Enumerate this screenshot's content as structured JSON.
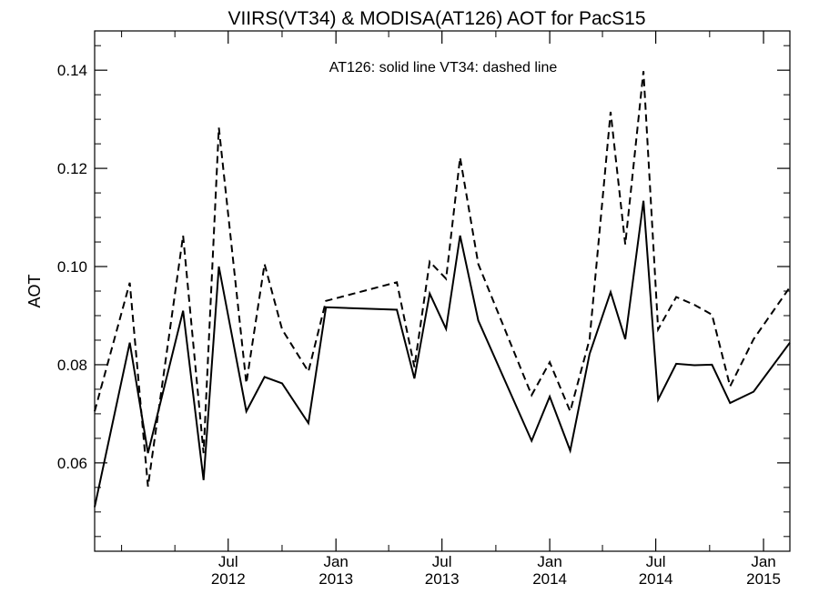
{
  "chart_data": {
    "type": "line",
    "title": "VIIRS(VT34) & MODISA(AT126)  AOT for PacS15",
    "annotation": "AT126: solid line   VT34: dashed line",
    "ylabel": "AOT",
    "xlabel": "",
    "xlim": [
      "2011-11-16",
      "2015-02-15"
    ],
    "ylim": [
      0.042,
      0.148
    ],
    "y_ticks": [
      0.06,
      0.08,
      0.1,
      0.12,
      0.14
    ],
    "y_tick_labels": [
      "0.06",
      "0.08",
      "0.10",
      "0.12",
      "0.14"
    ],
    "x_ticks": [
      {
        "date": "2012-07-01",
        "label": "Jul",
        "year": "2012"
      },
      {
        "date": "2013-01-01",
        "label": "Jan",
        "year": "2013"
      },
      {
        "date": "2013-07-01",
        "label": "Jul",
        "year": "2013"
      },
      {
        "date": "2014-01-01",
        "label": "Jan",
        "year": "2014"
      },
      {
        "date": "2014-07-01",
        "label": "Jul",
        "year": "2014"
      },
      {
        "date": "2015-01-01",
        "label": "Jan",
        "year": "2015"
      }
    ],
    "series": [
      {
        "name": "AT126",
        "style": "solid",
        "color": "#000000",
        "points": [
          {
            "x": "2011-11-16",
            "y": 0.051
          },
          {
            "x": "2012-01-15",
            "y": 0.0845
          },
          {
            "x": "2012-02-15",
            "y": 0.062
          },
          {
            "x": "2012-04-15",
            "y": 0.091
          },
          {
            "x": "2012-05-20",
            "y": 0.0565
          },
          {
            "x": "2012-06-15",
            "y": 0.1
          },
          {
            "x": "2012-08-01",
            "y": 0.0705
          },
          {
            "x": "2012-09-01",
            "y": 0.0775
          },
          {
            "x": "2012-10-01",
            "y": 0.0762
          },
          {
            "x": "2012-11-15",
            "y": 0.0681
          },
          {
            "x": "2012-12-15",
            "y": 0.0917
          },
          {
            "x": "2013-04-15",
            "y": 0.0912
          },
          {
            "x": "2013-05-15",
            "y": 0.0772
          },
          {
            "x": "2013-06-10",
            "y": 0.0945
          },
          {
            "x": "2013-07-08",
            "y": 0.0873
          },
          {
            "x": "2013-08-01",
            "y": 0.1063
          },
          {
            "x": "2013-09-01",
            "y": 0.089
          },
          {
            "x": "2013-12-01",
            "y": 0.0645
          },
          {
            "x": "2014-01-01",
            "y": 0.0735
          },
          {
            "x": "2014-02-05",
            "y": 0.0625
          },
          {
            "x": "2014-03-10",
            "y": 0.0822
          },
          {
            "x": "2014-04-15",
            "y": 0.0948
          },
          {
            "x": "2014-05-10",
            "y": 0.0852
          },
          {
            "x": "2014-06-10",
            "y": 0.1134
          },
          {
            "x": "2014-07-05",
            "y": 0.0729
          },
          {
            "x": "2014-08-05",
            "y": 0.0802
          },
          {
            "x": "2014-09-05",
            "y": 0.0799
          },
          {
            "x": "2014-10-05",
            "y": 0.08
          },
          {
            "x": "2014-11-05",
            "y": 0.0722
          },
          {
            "x": "2014-12-15",
            "y": 0.0745
          },
          {
            "x": "2015-02-15",
            "y": 0.0845
          }
        ]
      },
      {
        "name": "VT34",
        "style": "dashed",
        "color": "#000000",
        "points": [
          {
            "x": "2011-11-16",
            "y": 0.0705
          },
          {
            "x": "2012-01-15",
            "y": 0.0967
          },
          {
            "x": "2012-02-15",
            "y": 0.0552
          },
          {
            "x": "2012-04-15",
            "y": 0.1063
          },
          {
            "x": "2012-05-20",
            "y": 0.062
          },
          {
            "x": "2012-06-15",
            "y": 0.1283
          },
          {
            "x": "2012-08-01",
            "y": 0.0762
          },
          {
            "x": "2012-09-01",
            "y": 0.1005
          },
          {
            "x": "2012-10-01",
            "y": 0.0872
          },
          {
            "x": "2012-11-15",
            "y": 0.0786
          },
          {
            "x": "2012-12-15",
            "y": 0.093
          },
          {
            "x": "2013-04-15",
            "y": 0.0968
          },
          {
            "x": "2013-05-15",
            "y": 0.0795
          },
          {
            "x": "2013-06-10",
            "y": 0.101
          },
          {
            "x": "2013-07-08",
            "y": 0.0975
          },
          {
            "x": "2013-08-01",
            "y": 0.1222
          },
          {
            "x": "2013-09-01",
            "y": 0.1005
          },
          {
            "x": "2013-12-01",
            "y": 0.0738
          },
          {
            "x": "2014-01-01",
            "y": 0.0805
          },
          {
            "x": "2014-02-05",
            "y": 0.0705
          },
          {
            "x": "2014-03-10",
            "y": 0.0852
          },
          {
            "x": "2014-04-15",
            "y": 0.1315
          },
          {
            "x": "2014-05-10",
            "y": 0.1045
          },
          {
            "x": "2014-06-10",
            "y": 0.1398
          },
          {
            "x": "2014-07-05",
            "y": 0.0872
          },
          {
            "x": "2014-08-05",
            "y": 0.0938
          },
          {
            "x": "2014-09-05",
            "y": 0.0922
          },
          {
            "x": "2014-10-05",
            "y": 0.0902
          },
          {
            "x": "2014-11-05",
            "y": 0.0756
          },
          {
            "x": "2014-12-15",
            "y": 0.0852
          },
          {
            "x": "2015-02-15",
            "y": 0.0958
          }
        ]
      }
    ],
    "grid": false,
    "legend": "none"
  }
}
